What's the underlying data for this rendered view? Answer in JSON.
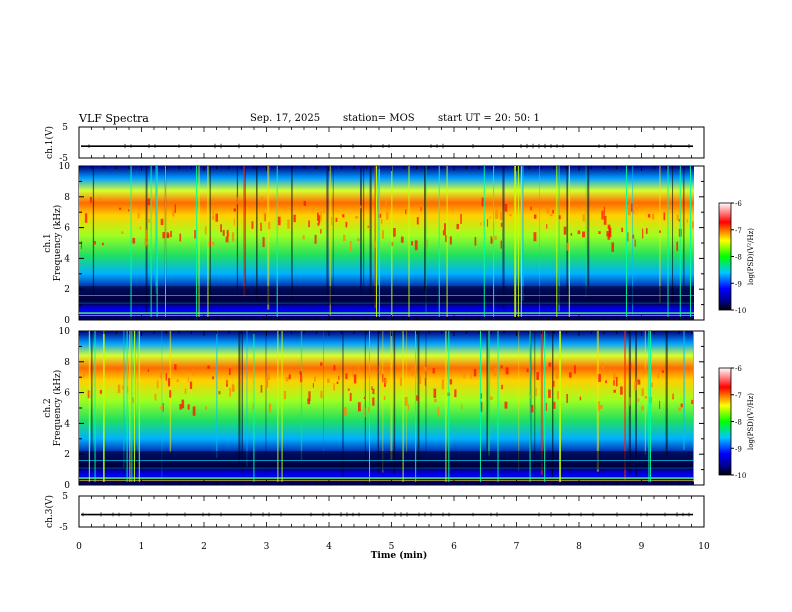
{
  "header": {
    "title": "VLF Spectra",
    "date": "Sep. 17, 2025",
    "station": "station= MOS",
    "start": "start  UT  =   20: 50: 1"
  },
  "chart_data": [
    {
      "type": "line",
      "name": "ch1-voltage",
      "ylabel": "ch.1(V)",
      "ylim": [
        -5,
        5
      ],
      "yticks": [
        "5",
        "-5"
      ],
      "xlim": [
        0,
        10
      ],
      "level": -1.2
    },
    {
      "type": "heatmap",
      "name": "ch1-spectrogram",
      "ylabel": "ch.1 Frequency (kHz)",
      "ylabel_top": "ch.1",
      "ylabel_bottom": "Frequency (kHz)",
      "ylim": [
        0,
        10
      ],
      "yticks": [
        "0",
        "2",
        "4",
        "6",
        "8",
        "10"
      ],
      "xlim": [
        0,
        9.85
      ],
      "peak_band_khz": [
        5,
        8
      ],
      "colorbar": {
        "label": "log(PSD)(V²/Hz)",
        "ticks": [
          "-6",
          "-7",
          "-8",
          "-9",
          "-10"
        ],
        "range": [
          -10,
          -6
        ]
      }
    },
    {
      "type": "heatmap",
      "name": "ch2-spectrogram",
      "ylabel": "ch.2 Frequency (kHz)",
      "ylabel_top": "ch.2",
      "ylabel_bottom": "Frequency (kHz)",
      "ylim": [
        0,
        10
      ],
      "yticks": [
        "0",
        "2",
        "4",
        "6",
        "8",
        "10"
      ],
      "xlim": [
        0,
        9.85
      ],
      "peak_band_khz": [
        5,
        8
      ],
      "colorbar": {
        "label": "log(PSD)(V²/Hz)",
        "ticks": [
          "-6",
          "-7",
          "-8",
          "-9",
          "-10"
        ],
        "range": [
          -10,
          -6
        ]
      }
    },
    {
      "type": "line",
      "name": "ch3-voltage",
      "ylabel": "ch.3(V)",
      "ylim": [
        -5,
        5
      ],
      "yticks": [
        "5",
        "-5"
      ],
      "xlim": [
        0,
        10
      ],
      "level": -1.0
    }
  ],
  "xaxis": {
    "label": "Time  (min)",
    "ticks": [
      "0",
      "1",
      "2",
      "3",
      "4",
      "5",
      "6",
      "7",
      "8",
      "9",
      "10"
    ],
    "range": [
      0,
      10
    ]
  }
}
